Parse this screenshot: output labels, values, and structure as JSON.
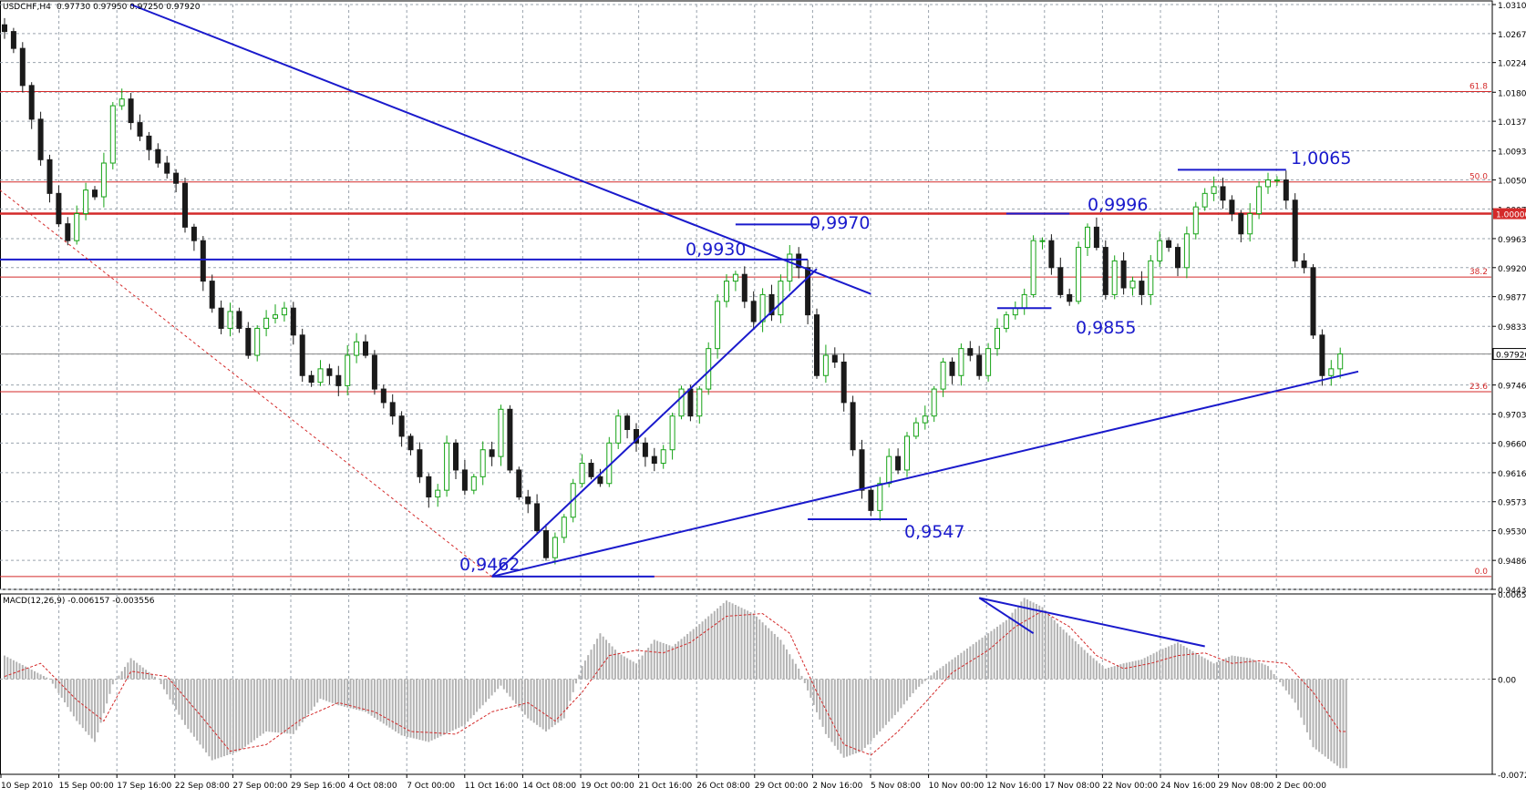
{
  "chart_data": {
    "type": "candlestick",
    "header": {
      "symbol": "USDCHF,H4",
      "ohlc": "0.97730 0.97950 0.97250 0.97920"
    },
    "colors": {
      "bull": "#16a316",
      "bear": "#1a1a1a",
      "trend": "#1a1acc",
      "level": "#d42a2a",
      "grid": "#9aa3ad",
      "macd_hist": "#b3b3b3",
      "macd_signal": "#d42a2a"
    },
    "price_axis": {
      "min": 0.9443,
      "max": 1.031,
      "labels": [
        "1.03100",
        "1.02670",
        "1.02240",
        "1.01800",
        "1.01370",
        "1.00930",
        "1.00500",
        "1.00070",
        "0.99630",
        "0.99200",
        "0.98770",
        "0.98330",
        "0.97920",
        "0.97460",
        "0.97030",
        "0.96600",
        "0.96160",
        "0.95730",
        "0.95300",
        "0.94860",
        "0.94430"
      ],
      "current_price_label": "0.97920",
      "highlight_label": "1.00000"
    },
    "fib_levels": [
      {
        "label": "61.8",
        "price": 1.0181
      },
      {
        "label": "50.0",
        "price": 1.0047
      },
      {
        "label": "38.2",
        "price": 0.9906
      },
      {
        "label": "23.6",
        "price": 0.9736
      },
      {
        "label": "0.0",
        "price": 0.9462
      }
    ],
    "bold_level": 1.0,
    "time_labels": [
      "10 Sep 2010",
      "15 Sep 00:00",
      "17 Sep 16:00",
      "22 Sep 08:00",
      "27 Sep 00:00",
      "29 Sep 16:00",
      "4 Oct 08:00",
      "7 Oct 00:00",
      "11 Oct 16:00",
      "14 Oct 08:00",
      "19 Oct 00:00",
      "21 Oct 16:00",
      "26 Oct 08:00",
      "29 Oct 00:00",
      "2 Nov 16:00",
      "5 Nov 08:00",
      "10 Nov 00:00",
      "12 Nov 16:00",
      "17 Nov 08:00",
      "22 Nov 00:00",
      "24 Nov 16:00",
      "29 Nov 08:00",
      "2 Dec 00:00"
    ],
    "annotations": [
      {
        "text": "0,9930",
        "price": 0.993
      },
      {
        "text": "0,9970",
        "price": 0.997
      },
      {
        "text": "0,9462",
        "price": 0.9462
      },
      {
        "text": "0,9547",
        "price": 0.9547
      },
      {
        "text": "0,9996",
        "price": 0.9996
      },
      {
        "text": "0,9855",
        "price": 0.9855
      },
      {
        "text": "1,0065",
        "price": 1.0065
      }
    ],
    "price_anchors": [
      [
        0,
        1.027
      ],
      [
        1,
        1.0245
      ],
      [
        2,
        1.019
      ],
      [
        3,
        1.014
      ],
      [
        4,
        1.008
      ],
      [
        5,
        1.003
      ],
      [
        6,
        0.9985
      ],
      [
        7,
        0.996
      ],
      [
        8,
        1.0
      ],
      [
        9,
        1.0035
      ],
      [
        10,
        1.0025
      ],
      [
        11,
        1.0075
      ],
      [
        12,
        1.016
      ],
      [
        13,
        1.017
      ],
      [
        14,
        1.0135
      ],
      [
        15,
        1.0115
      ],
      [
        16,
        1.0095
      ],
      [
        17,
        1.0075
      ],
      [
        18,
        1.006
      ],
      [
        19,
        1.0045
      ],
      [
        20,
        0.998
      ],
      [
        21,
        0.996
      ],
      [
        22,
        0.99
      ],
      [
        23,
        0.986
      ],
      [
        24,
        0.983
      ],
      [
        25,
        0.9855
      ],
      [
        26,
        0.983
      ],
      [
        27,
        0.979
      ],
      [
        28,
        0.983
      ],
      [
        29,
        0.9845
      ],
      [
        30,
        0.985
      ],
      [
        31,
        0.986
      ],
      [
        32,
        0.982
      ],
      [
        33,
        0.976
      ],
      [
        34,
        0.975
      ],
      [
        35,
        0.977
      ],
      [
        36,
        0.976
      ],
      [
        37,
        0.9745
      ],
      [
        38,
        0.979
      ],
      [
        39,
        0.981
      ],
      [
        40,
        0.979
      ],
      [
        41,
        0.974
      ],
      [
        42,
        0.972
      ],
      [
        43,
        0.97
      ],
      [
        44,
        0.967
      ],
      [
        45,
        0.965
      ],
      [
        46,
        0.961
      ],
      [
        47,
        0.958
      ],
      [
        48,
        0.959
      ],
      [
        49,
        0.966
      ],
      [
        50,
        0.962
      ],
      [
        51,
        0.959
      ],
      [
        52,
        0.961
      ],
      [
        53,
        0.965
      ],
      [
        54,
        0.964
      ],
      [
        55,
        0.971
      ],
      [
        56,
        0.962
      ],
      [
        57,
        0.958
      ],
      [
        58,
        0.957
      ],
      [
        59,
        0.953
      ],
      [
        60,
        0.949
      ],
      [
        61,
        0.952
      ],
      [
        62,
        0.955
      ],
      [
        63,
        0.96
      ],
      [
        64,
        0.963
      ],
      [
        65,
        0.961
      ],
      [
        66,
        0.96
      ],
      [
        67,
        0.966
      ],
      [
        68,
        0.97
      ],
      [
        69,
        0.968
      ],
      [
        70,
        0.966
      ],
      [
        71,
        0.964
      ],
      [
        72,
        0.963
      ],
      [
        73,
        0.965
      ],
      [
        74,
        0.97
      ],
      [
        75,
        0.974
      ],
      [
        76,
        0.97
      ],
      [
        77,
        0.974
      ],
      [
        78,
        0.98
      ],
      [
        79,
        0.987
      ],
      [
        80,
        0.99
      ],
      [
        81,
        0.991
      ],
      [
        82,
        0.987
      ],
      [
        83,
        0.984
      ],
      [
        84,
        0.988
      ],
      [
        85,
        0.985
      ],
      [
        86,
        0.99
      ],
      [
        87,
        0.994
      ],
      [
        88,
        0.992
      ],
      [
        89,
        0.985
      ],
      [
        90,
        0.976
      ],
      [
        91,
        0.979
      ],
      [
        92,
        0.978
      ],
      [
        93,
        0.972
      ],
      [
        94,
        0.965
      ],
      [
        95,
        0.959
      ],
      [
        96,
        0.956
      ],
      [
        97,
        0.96
      ],
      [
        98,
        0.964
      ],
      [
        99,
        0.962
      ],
      [
        100,
        0.967
      ],
      [
        101,
        0.969
      ],
      [
        102,
        0.97
      ],
      [
        103,
        0.974
      ],
      [
        104,
        0.978
      ],
      [
        105,
        0.976
      ],
      [
        106,
        0.98
      ],
      [
        107,
        0.979
      ],
      [
        108,
        0.976
      ],
      [
        109,
        0.98
      ],
      [
        110,
        0.983
      ],
      [
        111,
        0.985
      ],
      [
        112,
        0.986
      ],
      [
        113,
        0.988
      ],
      [
        114,
        0.996
      ],
      [
        115,
        0.996
      ],
      [
        116,
        0.992
      ],
      [
        117,
        0.988
      ],
      [
        118,
        0.987
      ],
      [
        119,
        0.995
      ],
      [
        120,
        0.998
      ],
      [
        121,
        0.995
      ],
      [
        122,
        0.988
      ],
      [
        123,
        0.993
      ],
      [
        124,
        0.989
      ],
      [
        125,
        0.99
      ],
      [
        126,
        0.988
      ],
      [
        127,
        0.993
      ],
      [
        128,
        0.996
      ],
      [
        129,
        0.995
      ],
      [
        130,
        0.992
      ],
      [
        131,
        0.997
      ],
      [
        132,
        1.001
      ],
      [
        133,
        1.003
      ],
      [
        134,
        1.004
      ],
      [
        135,
        1.002
      ],
      [
        136,
        1.0
      ],
      [
        137,
        0.997
      ],
      [
        138,
        1.0
      ],
      [
        139,
        1.004
      ],
      [
        140,
        1.005
      ],
      [
        141,
        1.005
      ],
      [
        142,
        1.002
      ],
      [
        143,
        0.993
      ],
      [
        144,
        0.992
      ],
      [
        145,
        0.982
      ],
      [
        146,
        0.976
      ],
      [
        147,
        0.977
      ],
      [
        148,
        0.9792
      ]
    ],
    "macd": {
      "label": "MACD(12,26,9) -0.006157 -0.003556",
      "min": -0.00727,
      "max": 0.006502,
      "labels": [
        "0.006502",
        "0.00",
        "-0.00727"
      ],
      "anchors": [
        [
          0,
          0.0018
        ],
        [
          5,
          0.0
        ],
        [
          8,
          -0.0032
        ],
        [
          10,
          -0.0048
        ],
        [
          12,
          -0.0004
        ],
        [
          14,
          0.0016
        ],
        [
          17,
          0.0
        ],
        [
          20,
          -0.0035
        ],
        [
          23,
          -0.0062
        ],
        [
          26,
          -0.0055
        ],
        [
          29,
          -0.004
        ],
        [
          32,
          -0.0042
        ],
        [
          35,
          -0.0015
        ],
        [
          37,
          -0.002
        ],
        [
          40,
          -0.0025
        ],
        [
          44,
          -0.0043
        ],
        [
          47,
          -0.0048
        ],
        [
          51,
          -0.0035
        ],
        [
          55,
          -0.0005
        ],
        [
          58,
          -0.003
        ],
        [
          60,
          -0.004
        ],
        [
          62,
          -0.003
        ],
        [
          64,
          0.001
        ],
        [
          66,
          0.0035
        ],
        [
          68,
          0.002
        ],
        [
          70,
          0.0012
        ],
        [
          72,
          0.003
        ],
        [
          74,
          0.0025
        ],
        [
          77,
          0.0042
        ],
        [
          80,
          0.006
        ],
        [
          83,
          0.005
        ],
        [
          86,
          0.003
        ],
        [
          88,
          0.0008
        ],
        [
          91,
          -0.0042
        ],
        [
          93,
          -0.006
        ],
        [
          95,
          -0.0055
        ],
        [
          97,
          -0.004
        ],
        [
          99,
          -0.0025
        ],
        [
          101,
          -0.0008
        ],
        [
          103,
          0.0005
        ],
        [
          105,
          0.0015
        ],
        [
          108,
          0.003
        ],
        [
          111,
          0.0045
        ],
        [
          113,
          0.0062
        ],
        [
          115,
          0.0055
        ],
        [
          117,
          0.004
        ],
        [
          120,
          0.002
        ],
        [
          122,
          0.0008
        ],
        [
          124,
          0.0012
        ],
        [
          126,
          0.0015
        ],
        [
          128,
          0.0022
        ],
        [
          130,
          0.0028
        ],
        [
          132,
          0.002
        ],
        [
          134,
          0.0012
        ],
        [
          136,
          0.0018
        ],
        [
          138,
          0.0016
        ],
        [
          140,
          0.001
        ],
        [
          143,
          -0.0018
        ],
        [
          145,
          -0.0052
        ],
        [
          148,
          -0.0068
        ]
      ],
      "signal_anchors": [
        [
          0,
          0.0002
        ],
        [
          4,
          0.0012
        ],
        [
          8,
          -0.0016
        ],
        [
          11,
          -0.0032
        ],
        [
          14,
          0.0006
        ],
        [
          18,
          0.0002
        ],
        [
          22,
          -0.003
        ],
        [
          25,
          -0.0055
        ],
        [
          29,
          -0.005
        ],
        [
          33,
          -0.003
        ],
        [
          37,
          -0.0018
        ],
        [
          41,
          -0.0025
        ],
        [
          45,
          -0.004
        ],
        [
          50,
          -0.0042
        ],
        [
          54,
          -0.0025
        ],
        [
          58,
          -0.0018
        ],
        [
          61,
          -0.0032
        ],
        [
          64,
          -0.001
        ],
        [
          67,
          0.0018
        ],
        [
          70,
          0.0022
        ],
        [
          73,
          0.002
        ],
        [
          76,
          0.0028
        ],
        [
          80,
          0.0048
        ],
        [
          84,
          0.005
        ],
        [
          87,
          0.0035
        ],
        [
          90,
          -0.001
        ],
        [
          93,
          -0.005
        ],
        [
          96,
          -0.0058
        ],
        [
          99,
          -0.004
        ],
        [
          102,
          -0.0018
        ],
        [
          105,
          0.0005
        ],
        [
          109,
          0.0022
        ],
        [
          112,
          0.004
        ],
        [
          115,
          0.0052
        ],
        [
          118,
          0.004
        ],
        [
          121,
          0.0018
        ],
        [
          124,
          0.0008
        ],
        [
          127,
          0.0012
        ],
        [
          130,
          0.0018
        ],
        [
          133,
          0.002
        ],
        [
          136,
          0.0012
        ],
        [
          139,
          0.0014
        ],
        [
          142,
          0.0012
        ],
        [
          145,
          -0.001
        ],
        [
          148,
          -0.004
        ]
      ]
    }
  }
}
